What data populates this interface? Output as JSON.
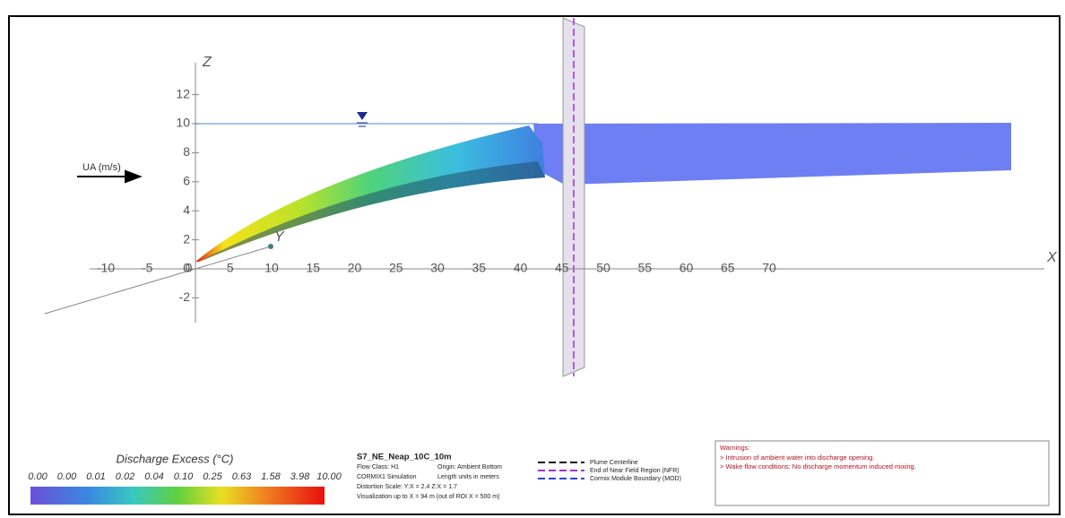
{
  "axes": {
    "x_label": "X",
    "y_label": "Y",
    "z_label": "Z",
    "x_ticks": [
      -10,
      -5,
      0,
      5,
      10,
      15,
      20,
      25,
      30,
      35,
      40,
      45,
      50,
      55,
      60,
      65,
      70
    ],
    "z_ticks": [
      -2,
      0,
      2,
      4,
      6,
      8,
      10,
      12
    ]
  },
  "ambient_label": "UA (m/s)",
  "colorbar": {
    "title": "Discharge Excess  (°C)",
    "labels": [
      "0.00",
      "0.00",
      "0.01",
      "0.02",
      "0.04",
      "0.10",
      "0.25",
      "0.63",
      "1.58",
      "3.98",
      "10.00"
    ]
  },
  "info": {
    "name": "S7_NE_Neap_10C_10m",
    "lines": [
      [
        "Flow Class: H1",
        "Origin: Ambient Bottom"
      ],
      [
        "CORMIX1 Simulation",
        "Length units in meters"
      ],
      [
        "Distortion Scale:  Y:X = 2.4   Z:X = 1.7",
        ""
      ],
      [
        "Visualization up to X = 94 m (out of ROI X = 500 m)",
        ""
      ]
    ]
  },
  "legend": [
    "Plume Centerline",
    "End of Near Field Region (NFR)",
    "Cormix Module Boundary (MOD)"
  ],
  "warnings": {
    "title": "Warnings:",
    "lines": [
      "> Intrusion of ambient water into discharge opening.",
      "> Wake flow conditions: No discharge momentum induced mixing."
    ]
  }
}
